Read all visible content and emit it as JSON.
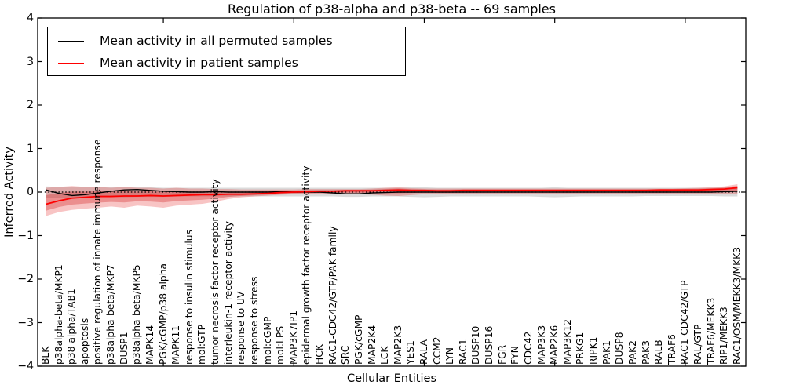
{
  "figure": {
    "title": "Regulation of p38-alpha and p38-beta -- 69 samples",
    "xlabel": "Cellular Entities",
    "ylabel": "Inferred Activity"
  },
  "legend": {
    "items": [
      {
        "label": "Mean activity in all permuted samples",
        "color": "#000000"
      },
      {
        "label": "Mean activity in patient samples",
        "color": "#ff0000"
      }
    ]
  },
  "axes": {
    "ytick_labels": [
      "4",
      "3",
      "2",
      "1",
      "0",
      "−1",
      "−2",
      "−3",
      "−4"
    ],
    "ytick_values": [
      4,
      3,
      2,
      1,
      0,
      -1,
      -2,
      -3,
      -4
    ]
  },
  "colors": {
    "permuted_line": "#000000",
    "patient_line": "#ff0000",
    "permuted_band": "rgba(0,0,0,0.14)",
    "patient_band": "rgba(228,36,36,0.27)",
    "patient_band_inner": "rgba(205,15,15,0.30)",
    "zero_line": "#000000"
  },
  "chart_data": {
    "type": "line",
    "title": "Regulation of p38-alpha and p38-beta -- 69 samples",
    "xlabel": "Cellular Entities",
    "ylabel": "Inferred Activity",
    "ylim": [
      -4,
      4
    ],
    "grid": false,
    "legend_position": "upper left",
    "zero_line_style": "dotted",
    "categories": [
      "BLK",
      "p38alpha-beta/MKP1",
      "p38 alpha/TAB1",
      "apoptosis",
      "positive regulation of innate immune response",
      "p38alpha-beta/MKP7",
      "DUSP1",
      "p38alpha-beta/MKP5",
      "MAPK14",
      "PGK/cGMP/p38 alpha",
      "MAPK11",
      "response to insulin stimulus",
      "mol:GTP",
      "tumor necrosis factor receptor activity",
      "interleukin-1 receptor activity",
      "response to UV",
      "response to stress",
      "mol:cGMP",
      "mol:LPS",
      "MAP3K7IP1",
      "epidermal growth factor receptor activity",
      "HCK",
      "RAC1-CDC42/GTP/PAK family",
      "SRC",
      "PGK/cGMP",
      "MAP2K4",
      "LCK",
      "MAP2K3",
      "YES1",
      "RALA",
      "CCM2",
      "LYN",
      "RAC1",
      "DUSP10",
      "DUSP16",
      "FGR",
      "FYN",
      "CDC42",
      "MAP3K3",
      "MAP2K6",
      "MAP3K12",
      "PRKG1",
      "RIPK1",
      "PAK1",
      "DUSP8",
      "PAK2",
      "PAK3",
      "RALB",
      "TRAF6",
      "RAC1-CDC42/GTP",
      "RAL/GTP",
      "TRAF6/MEKK3",
      "RIP1/MEKK3",
      "RAC1/OSM/MEKK3/MKK3"
    ],
    "series": [
      {
        "name": "Mean activity in all permuted samples",
        "values": [
          0.05,
          -0.03,
          -0.08,
          -0.06,
          -0.02,
          0.02,
          0.05,
          0.06,
          0.04,
          0.02,
          0.01,
          0,
          0,
          0.01,
          0,
          0,
          0,
          0,
          0.01,
          0,
          0,
          0,
          -0.02,
          -0.04,
          -0.04,
          -0.02,
          -0.01,
          0,
          0,
          0,
          0,
          0,
          0,
          0,
          0,
          0,
          0,
          0,
          0,
          0,
          0,
          0,
          0,
          0,
          0,
          0,
          0,
          0,
          0,
          0,
          0,
          0,
          0.01,
          0.02
        ]
      },
      {
        "name": "Mean activity in patient samples",
        "values": [
          -0.28,
          -0.2,
          -0.14,
          -0.12,
          -0.1,
          -0.1,
          -0.09,
          -0.09,
          -0.08,
          -0.09,
          -0.08,
          -0.07,
          -0.06,
          -0.06,
          -0.05,
          -0.05,
          -0.04,
          -0.03,
          -0.01,
          0,
          0.01,
          0.02,
          0.02,
          0.03,
          0.03,
          0.03,
          0.04,
          0.05,
          0.04,
          0.04,
          0.03,
          0.03,
          0.04,
          0.04,
          0.04,
          0.04,
          0.04,
          0.04,
          0.04,
          0.04,
          0.04,
          0.04,
          0.04,
          0.04,
          0.04,
          0.04,
          0.04,
          0.05,
          0.05,
          0.05,
          0.05,
          0.06,
          0.07,
          0.1
        ]
      }
    ],
    "bands": [
      {
        "name": "permuted-samples-spread",
        "lo": [
          -0.14,
          -0.13,
          -0.14,
          -0.12,
          -0.12,
          -0.11,
          -0.12,
          -0.11,
          -0.11,
          -0.11,
          -0.1,
          -0.1,
          -0.1,
          -0.1,
          -0.1,
          -0.1,
          -0.1,
          -0.1,
          -0.1,
          -0.1,
          -0.1,
          -0.1,
          -0.1,
          -0.11,
          -0.11,
          -0.1,
          -0.1,
          -0.1,
          -0.11,
          -0.12,
          -0.11,
          -0.1,
          -0.1,
          -0.1,
          -0.1,
          -0.1,
          -0.1,
          -0.1,
          -0.11,
          -0.12,
          -0.11,
          -0.1,
          -0.1,
          -0.1,
          -0.1,
          -0.1,
          -0.09,
          -0.09,
          -0.09,
          -0.09,
          -0.09,
          -0.09,
          -0.1,
          -0.1
        ],
        "hi": [
          0.13,
          0.12,
          0.12,
          0.12,
          0.11,
          0.11,
          0.12,
          0.11,
          0.11,
          0.1,
          0.1,
          0.1,
          0.1,
          0.1,
          0.1,
          0.1,
          0.1,
          0.1,
          0.1,
          0.1,
          0.1,
          0.1,
          0.1,
          0.1,
          0.1,
          0.1,
          0.1,
          0.1,
          0.11,
          0.11,
          0.1,
          0.1,
          0.1,
          0.1,
          0.1,
          0.1,
          0.1,
          0.1,
          0.1,
          0.11,
          0.1,
          0.1,
          0.1,
          0.1,
          0.1,
          0.1,
          0.1,
          0.1,
          0.1,
          0.1,
          0.1,
          0.1,
          0.1,
          0.1
        ]
      },
      {
        "name": "patient-samples-spread",
        "lo": [
          -0.55,
          -0.46,
          -0.41,
          -0.38,
          -0.36,
          -0.33,
          -0.36,
          -0.31,
          -0.33,
          -0.36,
          -0.31,
          -0.29,
          -0.27,
          -0.22,
          -0.16,
          -0.12,
          -0.1,
          -0.08,
          -0.06,
          -0.05,
          -0.05,
          -0.05,
          -0.05,
          -0.05,
          -0.05,
          -0.06,
          -0.08,
          -0.09,
          -0.07,
          -0.05,
          -0.05,
          -0.05,
          -0.05,
          -0.05,
          -0.05,
          -0.05,
          -0.05,
          -0.05,
          -0.05,
          -0.05,
          -0.05,
          -0.05,
          -0.05,
          -0.05,
          -0.05,
          -0.05,
          -0.05,
          -0.04,
          -0.04,
          -0.04,
          -0.04,
          -0.04,
          -0.04,
          -0.04
        ],
        "hi": [
          0.1,
          0.12,
          0.14,
          0.12,
          0.12,
          0.1,
          0.12,
          0.1,
          0.1,
          0.08,
          0.1,
          0.08,
          0.08,
          0.07,
          0.07,
          0.06,
          0.06,
          0.06,
          0.06,
          0.06,
          0.07,
          0.07,
          0.07,
          0.07,
          0.07,
          0.08,
          0.1,
          0.11,
          0.09,
          0.08,
          0.08,
          0.08,
          0.08,
          0.08,
          0.08,
          0.08,
          0.08,
          0.08,
          0.08,
          0.08,
          0.08,
          0.08,
          0.08,
          0.08,
          0.08,
          0.08,
          0.08,
          0.08,
          0.08,
          0.09,
          0.1,
          0.11,
          0.13,
          0.18
        ]
      }
    ]
  }
}
